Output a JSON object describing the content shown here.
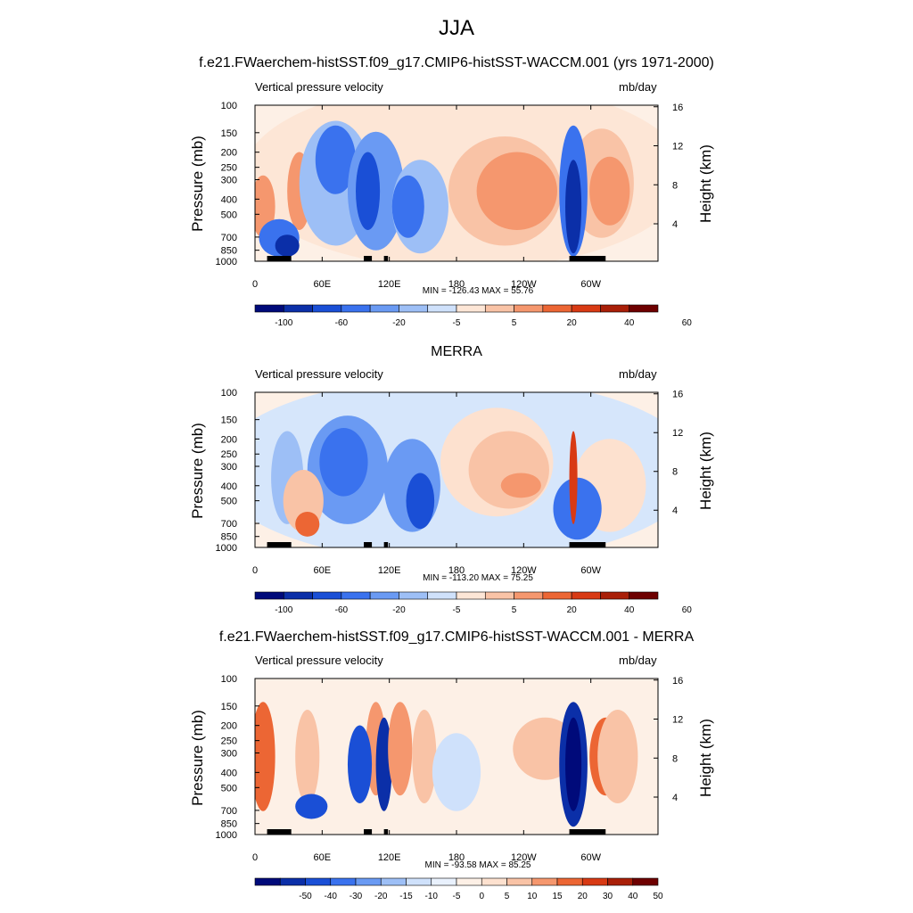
{
  "figure": {
    "title": "JJA"
  },
  "colors": {
    "strong_blue": "#0a2a9e",
    "blue": "#1f5fe0",
    "light_blue": "#8fb5f3",
    "pale_blue": "#d6e6fb",
    "pale_orange": "#fde1cf",
    "light_orange": "#f8ae8c",
    "orange": "#f0703e",
    "red": "#d33a1a",
    "dark_red": "#7a0000",
    "land": "#000000"
  },
  "chart_data": [
    {
      "type": "heatmap",
      "title": "f.e21.FWaerchem-histSST.f09_g17.CMIP6-histSST-WACCM.001 (yrs 1971-2000)",
      "left_string": "Vertical pressure velocity",
      "right_string": "mb/day",
      "ylabel": "Pressure (mb)",
      "y2label": "Height (km)",
      "x_ticks": [
        "0",
        "60E",
        "120E",
        "180",
        "120W",
        "60W"
      ],
      "y_ticks": [
        "100",
        "150",
        "200",
        "250",
        "300",
        "400",
        "500",
        "700",
        "850",
        "1000"
      ],
      "y2_ticks": [
        "16",
        "12",
        "8",
        "4"
      ],
      "ylim": [
        1000,
        100
      ],
      "min_max": "MIN = -126.43  MAX =  55.76",
      "colorbar_labels": [
        "-100",
        "-60",
        "-20",
        "-5",
        "5",
        "20",
        "40",
        "60"
      ]
    },
    {
      "type": "heatmap",
      "title": "MERRA",
      "left_string": "Vertical pressure velocity",
      "right_string": "mb/day",
      "ylabel": "Pressure (mb)",
      "y2label": "Height (km)",
      "x_ticks": [
        "0",
        "60E",
        "120E",
        "180",
        "120W",
        "60W"
      ],
      "y_ticks": [
        "100",
        "150",
        "200",
        "250",
        "300",
        "400",
        "500",
        "700",
        "850",
        "1000"
      ],
      "y2_ticks": [
        "16",
        "12",
        "8",
        "4"
      ],
      "ylim": [
        1000,
        100
      ],
      "min_max": "MIN = -113.20  MAX =  75.25",
      "colorbar_labels": [
        "-100",
        "-60",
        "-20",
        "-5",
        "5",
        "20",
        "40",
        "60"
      ]
    },
    {
      "type": "heatmap",
      "title": "f.e21.FWaerchem-histSST.f09_g17.CMIP6-histSST-WACCM.001 - MERRA",
      "left_string": "Vertical pressure velocity",
      "right_string": "mb/day",
      "ylabel": "Pressure (mb)",
      "y2label": "Height (km)",
      "x_ticks": [
        "0",
        "60E",
        "120E",
        "180",
        "120W",
        "60W"
      ],
      "y_ticks": [
        "100",
        "150",
        "200",
        "250",
        "300",
        "400",
        "500",
        "700",
        "850",
        "1000"
      ],
      "y2_ticks": [
        "16",
        "12",
        "8",
        "4"
      ],
      "ylim": [
        1000,
        100
      ],
      "min_max": "MIN = -93.58  MAX =  85.25",
      "colorbar_labels": [
        "-50",
        "-40",
        "-30",
        "-20",
        "-15",
        "-10",
        "-5",
        "0",
        "5",
        "10",
        "15",
        "20",
        "30",
        "40",
        "50"
      ]
    }
  ]
}
